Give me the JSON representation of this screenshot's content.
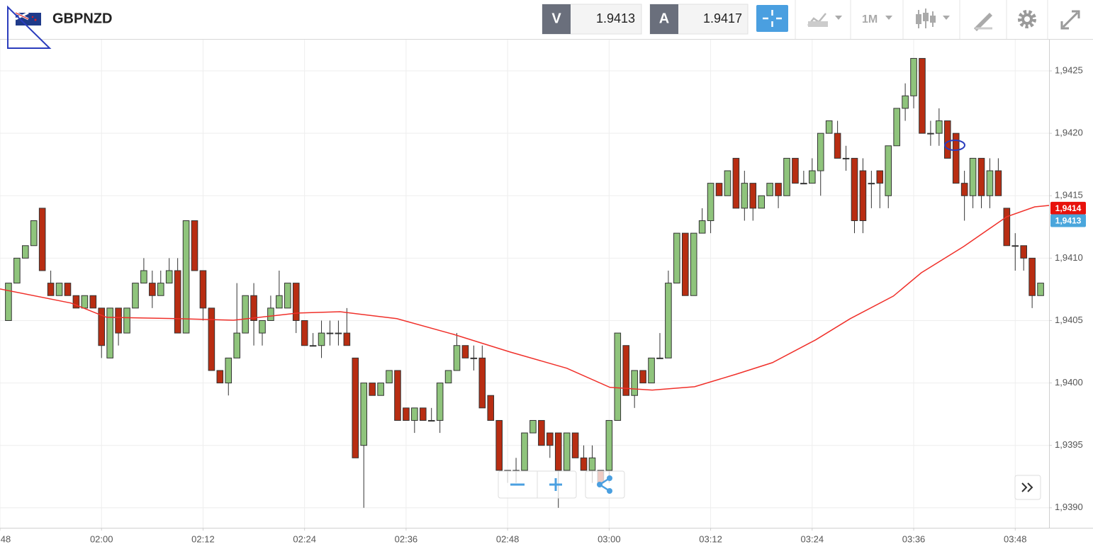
{
  "toolbar": {
    "symbol": "GBPNZD",
    "bid_label": "V",
    "bid": 1.9413,
    "ask_label": "A",
    "ask": 1.9417,
    "timeframe": "1M"
  },
  "chart_data": {
    "type": "candlestick",
    "up_color": "#8fc47c",
    "down_color": "#b82d12",
    "outline_color": "#333333",
    "x": [
      109,
      110,
      111,
      112,
      113,
      114,
      115,
      116,
      117,
      118,
      119,
      120,
      121,
      122,
      123,
      124,
      125,
      126,
      127,
      128,
      129,
      130,
      131,
      132,
      133,
      134,
      135,
      136,
      137,
      138,
      139,
      140,
      141,
      142,
      143,
      144,
      145,
      146,
      147,
      148,
      149,
      150,
      151,
      152,
      153,
      154,
      155,
      156,
      157,
      158,
      159,
      160,
      161,
      162,
      163,
      164,
      165,
      166,
      167,
      168,
      169,
      170,
      171,
      172,
      173,
      174,
      175,
      176,
      177,
      178,
      179,
      180,
      181,
      182,
      183,
      184,
      185,
      186,
      187,
      188,
      189,
      190,
      191,
      192,
      193,
      194,
      195,
      196,
      197,
      198,
      199,
      200,
      201,
      202,
      203,
      204,
      205,
      206,
      207,
      208,
      209,
      210,
      211,
      212,
      213,
      214,
      215,
      216,
      217,
      218,
      219,
      220,
      221,
      222,
      223,
      224,
      225,
      226,
      227,
      228,
      229,
      230,
      231
    ],
    "open": [
      1.9405,
      1.9408,
      1.941,
      1.9411,
      1.9414,
      1.9408,
      1.9407,
      1.9408,
      1.9407,
      1.9406,
      1.9407,
      1.9406,
      1.9402,
      1.9406,
      1.9404,
      1.9406,
      1.9408,
      1.9408,
      1.9407,
      1.9408,
      1.9409,
      1.9404,
      1.9413,
      1.9409,
      1.9406,
      1.9401,
      1.94,
      1.9402,
      1.9404,
      1.9407,
      1.9404,
      1.9405,
      1.9406,
      1.9406,
      1.9408,
      1.9405,
      1.9403,
      1.9403,
      1.9404,
      1.9404,
      1.9404,
      1.9402,
      1.9395,
      1.94,
      1.9399,
      1.94,
      1.9401,
      1.9398,
      1.9397,
      1.9398,
      1.9397,
      1.9397,
      1.94,
      1.9401,
      1.9403,
      1.9402,
      1.9402,
      1.9399,
      1.9397,
      1.9393,
      1.9393,
      1.9393,
      1.9396,
      1.9397,
      1.9396,
      1.9396,
      1.9393,
      1.9396,
      1.9394,
      1.9393,
      1.9393,
      1.9393,
      1.9397,
      1.9403,
      1.9399,
      1.9401,
      1.94,
      1.9402,
      1.9402,
      1.9408,
      1.9412,
      1.9407,
      1.9412,
      1.9413,
      1.9416,
      1.9415,
      1.9418,
      1.9414,
      1.9416,
      1.9414,
      1.9415,
      1.9416,
      1.9415,
      1.9418,
      1.9416,
      1.9416,
      1.9417,
      1.942,
      1.942,
      1.9418,
      1.9418,
      1.9417,
      1.9416,
      1.9417,
      1.9415,
      1.9419,
      1.9422,
      1.9423,
      1.9426,
      1.942,
      1.942,
      1.9421,
      1.942,
      1.9416,
      1.9415,
      1.9418,
      1.9415,
      1.9417,
      1.9414,
      1.9411,
      1.9411,
      1.941,
      1.9407
    ],
    "high": [
      1.9408,
      1.941,
      1.9411,
      1.9413,
      1.9414,
      1.9409,
      1.9408,
      1.9408,
      1.9407,
      1.9407,
      1.9407,
      1.9406,
      1.9406,
      1.9406,
      1.9406,
      1.9408,
      1.941,
      1.9409,
      1.9409,
      1.941,
      1.941,
      1.9413,
      1.9413,
      1.9409,
      1.9406,
      1.9401,
      1.9402,
      1.9408,
      1.9407,
      1.9408,
      1.9405,
      1.9407,
      1.9409,
      1.9408,
      1.9408,
      1.9405,
      1.9404,
      1.9405,
      1.9405,
      1.9405,
      1.9406,
      1.9402,
      1.94,
      1.94,
      1.94,
      1.9401,
      1.9401,
      1.9398,
      1.9398,
      1.9398,
      1.9398,
      1.94,
      1.9401,
      1.9404,
      1.9403,
      1.9403,
      1.9403,
      1.9399,
      1.9397,
      1.9393,
      1.9394,
      1.9396,
      1.9397,
      1.9397,
      1.9396,
      1.9396,
      1.9396,
      1.9396,
      1.9395,
      1.9395,
      1.9393,
      1.9397,
      1.9404,
      1.9403,
      1.9401,
      1.9401,
      1.9402,
      1.9404,
      1.9409,
      1.9412,
      1.9412,
      1.9412,
      1.9414,
      1.9416,
      1.9416,
      1.9417,
      1.9418,
      1.9417,
      1.9416,
      1.9415,
      1.9416,
      1.9416,
      1.9418,
      1.9418,
      1.9417,
      1.9418,
      1.942,
      1.9421,
      1.9421,
      1.9419,
      1.9418,
      1.9418,
      1.9417,
      1.9417,
      1.9419,
      1.9422,
      1.9424,
      1.9426,
      1.9426,
      1.9421,
      1.9422,
      1.9421,
      1.942,
      1.9417,
      1.9418,
      1.9418,
      1.9418,
      1.9418,
      1.9414,
      1.9412,
      1.9411,
      1.941,
      1.9408
    ],
    "low": [
      1.9405,
      1.9408,
      1.941,
      1.9411,
      1.9409,
      1.9407,
      1.9407,
      1.9407,
      1.9406,
      1.9406,
      1.9406,
      1.9402,
      1.9402,
      1.9403,
      1.9404,
      1.9406,
      1.9408,
      1.9406,
      1.9407,
      1.9408,
      1.9404,
      1.9404,
      1.9409,
      1.9405,
      1.9401,
      1.94,
      1.9399,
      1.9402,
      1.9404,
      1.9403,
      1.9403,
      1.9405,
      1.9406,
      1.9406,
      1.9404,
      1.9403,
      1.9403,
      1.9402,
      1.9403,
      1.9403,
      1.9403,
      1.9394,
      1.939,
      1.9399,
      1.9399,
      1.94,
      1.9397,
      1.9397,
      1.9396,
      1.9397,
      1.9397,
      1.9396,
      1.94,
      1.9401,
      1.9402,
      1.9401,
      1.9398,
      1.9397,
      1.9393,
      1.9392,
      1.9392,
      1.9393,
      1.9396,
      1.9395,
      1.9394,
      1.939,
      1.9393,
      1.9394,
      1.9393,
      1.9392,
      1.9392,
      1.9392,
      1.9397,
      1.9399,
      1.9398,
      1.94,
      1.94,
      1.9402,
      1.9402,
      1.9408,
      1.9407,
      1.9407,
      1.9412,
      1.9412,
      1.9415,
      1.9415,
      1.9414,
      1.9413,
      1.9413,
      1.9414,
      1.9415,
      1.9414,
      1.9415,
      1.9416,
      1.9416,
      1.9416,
      1.9415,
      1.942,
      1.9418,
      1.9417,
      1.9412,
      1.9412,
      1.9414,
      1.9414,
      1.9414,
      1.9419,
      1.9421,
      1.9422,
      1.942,
      1.9419,
      1.9419,
      1.9418,
      1.9416,
      1.9413,
      1.9414,
      1.9414,
      1.9414,
      1.9415,
      1.9411,
      1.9409,
      1.9409,
      1.9406,
      1.9407
    ],
    "close": [
      1.9408,
      1.941,
      1.9411,
      1.9413,
      1.9409,
      1.9407,
      1.9408,
      1.9407,
      1.9406,
      1.9407,
      1.9406,
      1.9403,
      1.9406,
      1.9404,
      1.9406,
      1.9408,
      1.9409,
      1.9407,
      1.9408,
      1.9409,
      1.9404,
      1.9413,
      1.9409,
      1.9406,
      1.9401,
      1.94,
      1.9402,
      1.9404,
      1.9407,
      1.9405,
      1.9405,
      1.9406,
      1.9407,
      1.9408,
      1.9405,
      1.9403,
      1.9403,
      1.9404,
      1.9404,
      1.9404,
      1.9403,
      1.9394,
      1.94,
      1.9399,
      1.94,
      1.9401,
      1.9397,
      1.9397,
      1.9398,
      1.9397,
      1.9397,
      1.94,
      1.9401,
      1.9403,
      1.9402,
      1.9402,
      1.9398,
      1.9397,
      1.9393,
      1.9393,
      1.9393,
      1.9396,
      1.9397,
      1.9395,
      1.9395,
      1.9393,
      1.9396,
      1.9394,
      1.9393,
      1.9394,
      1.9392,
      1.9397,
      1.9404,
      1.9399,
      1.9401,
      1.94,
      1.9402,
      1.9402,
      1.9408,
      1.9412,
      1.9407,
      1.9412,
      1.9413,
      1.9416,
      1.9415,
      1.9417,
      1.9414,
      1.9416,
      1.9414,
      1.9415,
      1.9416,
      1.9415,
      1.9418,
      1.9416,
      1.9416,
      1.9417,
      1.942,
      1.9421,
      1.9418,
      1.9418,
      1.9413,
      1.9413,
      1.9416,
      1.9416,
      1.9419,
      1.9422,
      1.9423,
      1.9426,
      1.942,
      1.942,
      1.9421,
      1.9418,
      1.9416,
      1.9415,
      1.9418,
      1.9415,
      1.9417,
      1.9415,
      1.9411,
      1.9411,
      1.941,
      1.9407,
      1.9408
    ],
    "lines": [
      {
        "color": "#f0302a",
        "x": [
          108,
          116.4,
          120.6,
          128.9,
          135.6,
          143.2,
          148.2,
          154.9,
          161.6,
          168.3,
          175,
          180.1,
          185.1,
          190.1,
          195.1,
          199.3,
          204.4,
          208.5,
          213.6,
          216.9,
          221.9,
          227,
          230.3,
          232
        ],
        "values": [
          1.940753,
          1.94064,
          1.940526,
          1.940515,
          1.940503,
          1.94056,
          1.940571,
          1.940515,
          1.94039,
          1.940248,
          1.940118,
          1.939965,
          1.939943,
          1.93997,
          1.940072,
          1.940163,
          1.940345,
          1.940515,
          1.940696,
          1.940883,
          1.941093,
          1.941332,
          1.941411,
          1.941422
        ]
      }
    ],
    "xlim": [
      108,
      232
    ],
    "xticks": [
      {
        "value": 108,
        "label": "48"
      },
      {
        "value": 120,
        "label": "02:00"
      },
      {
        "value": 132,
        "label": "02:12"
      },
      {
        "value": 144,
        "label": "02:24"
      },
      {
        "value": 156,
        "label": "02:36"
      },
      {
        "value": 168,
        "label": "02:48"
      },
      {
        "value": 180,
        "label": "03:00"
      },
      {
        "value": 192,
        "label": "03:12"
      },
      {
        "value": 204,
        "label": "03:24"
      },
      {
        "value": 216,
        "label": "03:36"
      },
      {
        "value": 228,
        "label": "03:48"
      }
    ],
    "ylim": [
      1.93884,
      1.94275
    ],
    "yticks": [
      {
        "value": 1.939,
        "label": "1,9390"
      },
      {
        "value": 1.9395,
        "label": "1,9395"
      },
      {
        "value": 1.94,
        "label": "1,9400"
      },
      {
        "value": 1.9405,
        "label": "1,9405"
      },
      {
        "value": 1.941,
        "label": "1,9410"
      },
      {
        "value": 1.9415,
        "label": "1,9415"
      },
      {
        "value": 1.942,
        "label": "1,9420"
      },
      {
        "value": 1.9425,
        "label": "1,9425"
      }
    ],
    "grid": true,
    "price_markers": [
      {
        "value": 1.9414,
        "label": "1,9414",
        "color": "#e8120c"
      },
      {
        "value": 1.9413,
        "label": "1,9413",
        "color": "#4aa6dc"
      }
    ]
  }
}
